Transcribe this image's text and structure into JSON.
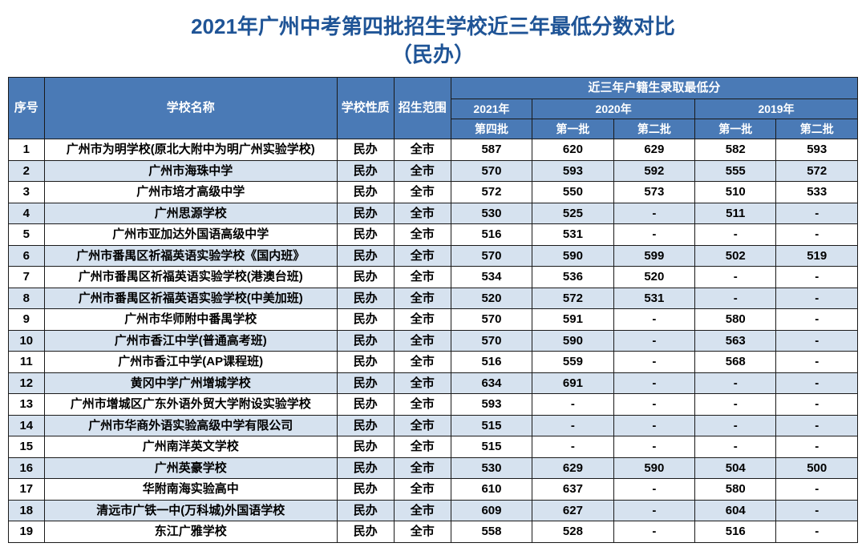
{
  "title_line1": "2021年广州中考第四批招生学校近三年最低分数对比",
  "title_line2": "（民办）",
  "header": {
    "idx": "序号",
    "name": "学校名称",
    "type": "学校性质",
    "scope": "招生范围",
    "group": "近三年户籍生录取最低分",
    "y2021": "2021年",
    "y2020": "2020年",
    "y2019": "2019年",
    "b4": "第四批",
    "b1": "第一批",
    "b2": "第二批"
  },
  "type_label": "民办",
  "scope_label": "全市",
  "rows": [
    {
      "i": "1",
      "n": "广州市为明学校(原北大附中为明广州实验学校)",
      "s": [
        "587",
        "620",
        "629",
        "582",
        "593"
      ]
    },
    {
      "i": "2",
      "n": "广州市海珠中学",
      "s": [
        "570",
        "593",
        "592",
        "555",
        "572"
      ]
    },
    {
      "i": "3",
      "n": "广州市培才高级中学",
      "s": [
        "572",
        "550",
        "573",
        "510",
        "533"
      ]
    },
    {
      "i": "4",
      "n": "广州思源学校",
      "s": [
        "530",
        "525",
        "-",
        "511",
        "-"
      ]
    },
    {
      "i": "5",
      "n": "广州市亚加达外国语高级中学",
      "s": [
        "516",
        "531",
        "-",
        "-",
        "-"
      ]
    },
    {
      "i": "6",
      "n": "广州市番禺区祈福英语实验学校《国内班》",
      "s": [
        "570",
        "590",
        "599",
        "502",
        "519"
      ]
    },
    {
      "i": "7",
      "n": "广州市番禺区祈福英语实验学校(港澳台班)",
      "s": [
        "534",
        "536",
        "520",
        "-",
        "-"
      ]
    },
    {
      "i": "8",
      "n": "广州市番禺区祈福英语实验学校(中美加班)",
      "s": [
        "520",
        "572",
        "531",
        "-",
        "-"
      ]
    },
    {
      "i": "9",
      "n": "广州市华师附中番禺学校",
      "s": [
        "570",
        "591",
        "-",
        "580",
        "-"
      ]
    },
    {
      "i": "10",
      "n": "广州市香江中学(普通高考班)",
      "s": [
        "570",
        "590",
        "-",
        "563",
        "-"
      ]
    },
    {
      "i": "11",
      "n": "广州市香江中学(AP课程班)",
      "s": [
        "516",
        "559",
        "-",
        "568",
        "-"
      ]
    },
    {
      "i": "12",
      "n": "黄冈中学广州增城学校",
      "s": [
        "634",
        "691",
        "-",
        "-",
        "-"
      ]
    },
    {
      "i": "13",
      "n": "广州市增城区广东外语外贸大学附设实验学校",
      "s": [
        "593",
        "-",
        "-",
        "-",
        "-"
      ]
    },
    {
      "i": "14",
      "n": "广州市华商外语实验高级中学有限公司",
      "s": [
        "515",
        "-",
        "-",
        "-",
        "-"
      ]
    },
    {
      "i": "15",
      "n": "广州南洋英文学校",
      "s": [
        "515",
        "-",
        "-",
        "-",
        "-"
      ]
    },
    {
      "i": "16",
      "n": "广州英豪学校",
      "s": [
        "530",
        "629",
        "590",
        "504",
        "500"
      ]
    },
    {
      "i": "17",
      "n": "华附南海实验高中",
      "s": [
        "610",
        "637",
        "-",
        "580",
        "-"
      ]
    },
    {
      "i": "18",
      "n": "清远市广铁一中(万科城)外国语学校",
      "s": [
        "609",
        "627",
        "-",
        "604",
        "-"
      ]
    },
    {
      "i": "19",
      "n": "东江广雅学校",
      "s": [
        "558",
        "528",
        "-",
        "516",
        "-"
      ]
    }
  ]
}
